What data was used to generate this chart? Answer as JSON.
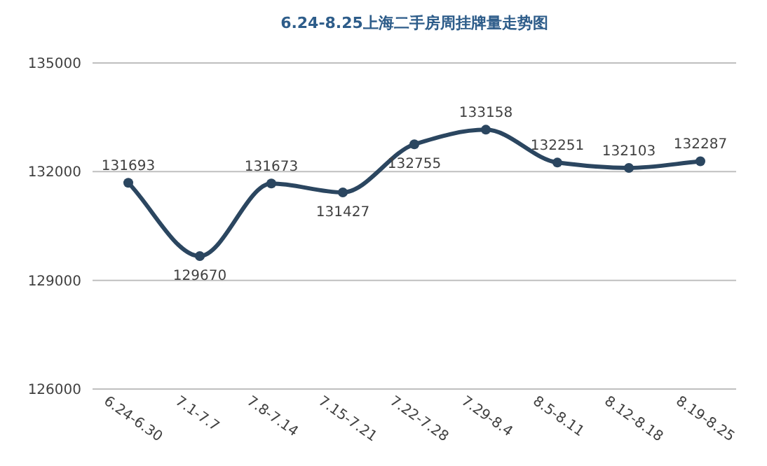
{
  "chart_data": {
    "type": "line",
    "title": "6.24-8.25上海二手房周挂牌量走势图",
    "categories": [
      "6.24-6.30",
      "7.1-7.7",
      "7.8-7.14",
      "7.15-7.21",
      "7.22-7.28",
      "7.29-8.4",
      "8.5-8.11",
      "8.12-8.18",
      "8.19-8.25"
    ],
    "values": [
      131693,
      129670,
      131673,
      131427,
      132755,
      133158,
      132251,
      132103,
      132287
    ],
    "color": "#2b4660",
    "ylim": [
      126000,
      135000
    ],
    "yticks": [
      126000,
      129000,
      132000,
      135000
    ],
    "grid": "y",
    "marker": "circle",
    "line_style": "solid",
    "data_labels": true
  }
}
